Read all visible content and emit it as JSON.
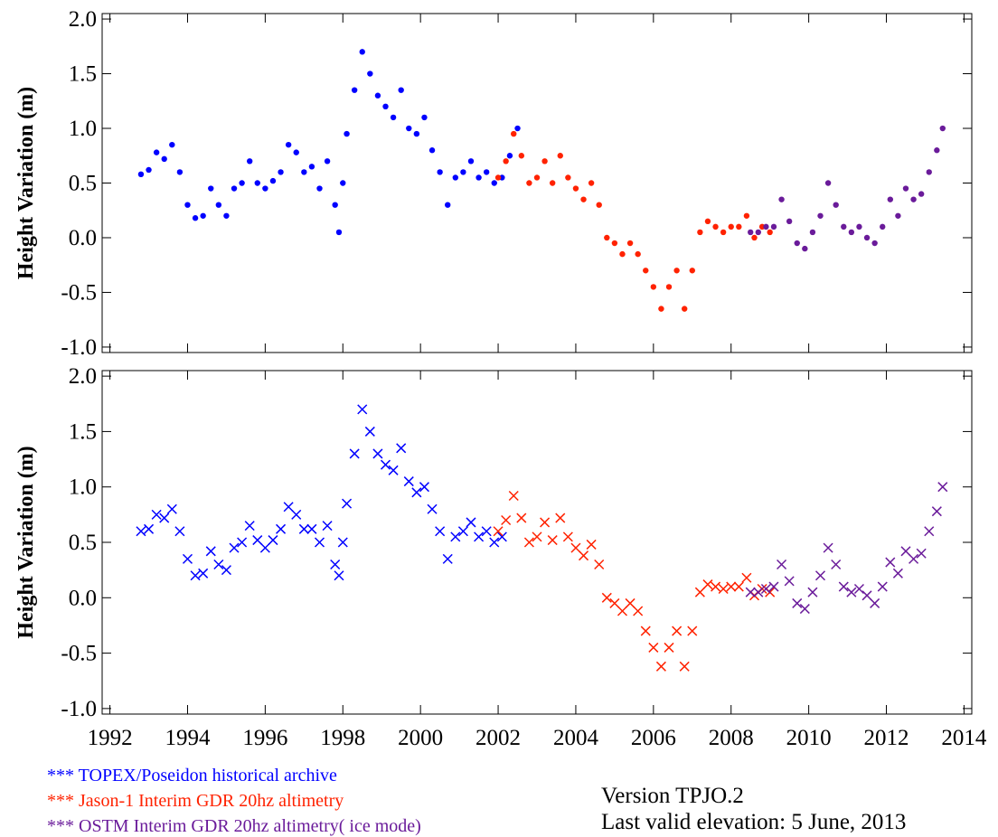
{
  "chart_data": [
    {
      "type": "scatter",
      "marker": "dot",
      "y_label": "Height Variation (m)",
      "xlim": [
        1991.8,
        2014.2
      ],
      "ylim": [
        -1.05,
        2.05
      ],
      "yticks": [
        {
          "value": 2,
          "label": "2.0"
        },
        1.5,
        {
          "value": 1,
          "label": "1.0"
        },
        0.5,
        {
          "value": 0,
          "label": "0.0"
        },
        -0.5,
        {
          "value": -1,
          "label": "-1.0"
        }
      ],
      "series": [
        {
          "color": "#0000ff",
          "x": [
            1992.8,
            1993.0,
            1993.2,
            1993.4,
            1993.6,
            1993.8,
            1994.0,
            1994.2,
            1994.4,
            1994.6,
            1994.8,
            1995.0,
            1995.2,
            1995.4,
            1995.6,
            1995.8,
            1996.0,
            1996.2,
            1996.4,
            1996.6,
            1996.8,
            1997.0,
            1997.2,
            1997.4,
            1997.6,
            1997.8,
            1997.9,
            1998.0,
            1998.1,
            1998.3,
            1998.5,
            1998.7,
            1998.9,
            1999.1,
            1999.3,
            1999.5,
            1999.7,
            1999.9,
            2000.1,
            2000.3,
            2000.5,
            2000.7,
            2000.9,
            2001.1,
            2001.3,
            2001.5,
            2001.7,
            2001.9,
            2002.1,
            2002.3,
            2002.5
          ],
          "values": [
            0.58,
            0.62,
            0.78,
            0.72,
            0.85,
            0.6,
            0.3,
            0.18,
            0.2,
            0.45,
            0.3,
            0.2,
            0.45,
            0.5,
            0.7,
            0.5,
            0.45,
            0.52,
            0.6,
            0.85,
            0.78,
            0.6,
            0.65,
            0.45,
            0.7,
            0.3,
            0.05,
            0.5,
            0.95,
            1.35,
            1.7,
            1.5,
            1.3,
            1.2,
            1.1,
            1.35,
            1.0,
            0.95,
            1.1,
            0.8,
            0.6,
            0.3,
            0.55,
            0.6,
            0.7,
            0.55,
            0.6,
            0.5,
            0.55,
            0.75,
            1.0
          ]
        },
        {
          "color": "#ff2200",
          "x": [
            2002.0,
            2002.2,
            2002.4,
            2002.6,
            2002.8,
            2003.0,
            2003.2,
            2003.4,
            2003.6,
            2003.8,
            2004.0,
            2004.2,
            2004.4,
            2004.6,
            2004.8,
            2005.0,
            2005.2,
            2005.4,
            2005.6,
            2005.8,
            2006.0,
            2006.2,
            2006.4,
            2006.6,
            2006.8,
            2007.0,
            2007.2,
            2007.4,
            2007.6,
            2007.8,
            2008.0,
            2008.2,
            2008.4,
            2008.6,
            2008.8,
            2009.0
          ],
          "values": [
            0.55,
            0.7,
            0.95,
            0.75,
            0.5,
            0.55,
            0.7,
            0.5,
            0.75,
            0.55,
            0.45,
            0.35,
            0.5,
            0.3,
            0.0,
            -0.05,
            -0.15,
            -0.05,
            -0.15,
            -0.3,
            -0.45,
            -0.65,
            -0.45,
            -0.3,
            -0.65,
            -0.3,
            0.05,
            0.15,
            0.1,
            0.05,
            0.1,
            0.1,
            0.2,
            0.0,
            0.1,
            0.05
          ]
        },
        {
          "color": "#6a1b9a",
          "x": [
            2008.5,
            2008.7,
            2008.9,
            2009.1,
            2009.3,
            2009.5,
            2009.7,
            2009.9,
            2010.1,
            2010.3,
            2010.5,
            2010.7,
            2010.9,
            2011.1,
            2011.3,
            2011.5,
            2011.7,
            2011.9,
            2012.1,
            2012.3,
            2012.5,
            2012.7,
            2012.9,
            2013.1,
            2013.3,
            2013.45
          ],
          "values": [
            0.05,
            0.05,
            0.1,
            0.1,
            0.35,
            0.15,
            -0.05,
            -0.1,
            0.05,
            0.2,
            0.5,
            0.3,
            0.1,
            0.05,
            0.1,
            0.0,
            -0.05,
            0.1,
            0.35,
            0.2,
            0.45,
            0.35,
            0.4,
            0.6,
            0.8,
            1.0
          ]
        }
      ]
    },
    {
      "type": "scatter",
      "marker": "x",
      "y_label": "Height Variation (m)",
      "xlim": [
        1991.8,
        2014.2
      ],
      "ylim": [
        -1.05,
        2.05
      ],
      "xticks": [
        1992,
        1994,
        1996,
        1998,
        2000,
        2002,
        2004,
        2006,
        2008,
        2010,
        2012,
        2014
      ],
      "yticks": [
        {
          "value": 2,
          "label": "2.0"
        },
        1.5,
        {
          "value": 1,
          "label": "1.0"
        },
        0.5,
        {
          "value": 0,
          "label": "0.0"
        },
        -0.5,
        {
          "value": -1,
          "label": "-1.0"
        }
      ],
      "series": [
        {
          "name": "*** TOPEX/Poseidon historical archive",
          "color": "#0000ff",
          "x": [
            1992.8,
            1993.0,
            1993.2,
            1993.4,
            1993.6,
            1993.8,
            1994.0,
            1994.2,
            1994.4,
            1994.6,
            1994.8,
            1995.0,
            1995.2,
            1995.4,
            1995.6,
            1995.8,
            1996.0,
            1996.2,
            1996.4,
            1996.6,
            1996.8,
            1997.0,
            1997.2,
            1997.4,
            1997.6,
            1997.8,
            1997.9,
            1998.0,
            1998.1,
            1998.3,
            1998.5,
            1998.7,
            1998.9,
            1999.1,
            1999.3,
            1999.5,
            1999.7,
            1999.9,
            2000.1,
            2000.3,
            2000.5,
            2000.7,
            2000.9,
            2001.1,
            2001.3,
            2001.5,
            2001.7,
            2001.9,
            2002.1
          ],
          "values": [
            0.6,
            0.62,
            0.75,
            0.72,
            0.8,
            0.6,
            0.35,
            0.2,
            0.22,
            0.42,
            0.3,
            0.25,
            0.45,
            0.5,
            0.65,
            0.52,
            0.45,
            0.52,
            0.62,
            0.82,
            0.75,
            0.62,
            0.62,
            0.5,
            0.65,
            0.3,
            0.2,
            0.5,
            0.85,
            1.3,
            1.7,
            1.5,
            1.3,
            1.2,
            1.15,
            1.35,
            1.05,
            0.95,
            1.0,
            0.8,
            0.6,
            0.35,
            0.55,
            0.6,
            0.68,
            0.55,
            0.6,
            0.5,
            0.55
          ]
        },
        {
          "name": "*** Jason-1 Interim GDR 20hz altimetry",
          "color": "#ff2200",
          "x": [
            2002.0,
            2002.2,
            2002.4,
            2002.6,
            2002.8,
            2003.0,
            2003.2,
            2003.4,
            2003.6,
            2003.8,
            2004.0,
            2004.2,
            2004.4,
            2004.6,
            2004.8,
            2005.0,
            2005.2,
            2005.4,
            2005.6,
            2005.8,
            2006.0,
            2006.2,
            2006.4,
            2006.6,
            2006.8,
            2007.0,
            2007.2,
            2007.4,
            2007.6,
            2007.8,
            2008.0,
            2008.2,
            2008.4,
            2008.6,
            2008.8,
            2009.0
          ],
          "values": [
            0.6,
            0.7,
            0.92,
            0.72,
            0.5,
            0.55,
            0.68,
            0.52,
            0.72,
            0.55,
            0.45,
            0.38,
            0.48,
            0.3,
            0.0,
            -0.05,
            -0.12,
            -0.05,
            -0.12,
            -0.3,
            -0.45,
            -0.62,
            -0.45,
            -0.3,
            -0.62,
            -0.3,
            0.05,
            0.12,
            0.1,
            0.08,
            0.1,
            0.1,
            0.18,
            0.02,
            0.08,
            0.05
          ]
        },
        {
          "name": "*** OSTM  Interim GDR 20hz altimetry( ice mode)",
          "color": "#6a1b9a",
          "x": [
            2008.5,
            2008.7,
            2008.9,
            2009.1,
            2009.3,
            2009.5,
            2009.7,
            2009.9,
            2010.1,
            2010.3,
            2010.5,
            2010.7,
            2010.9,
            2011.1,
            2011.3,
            2011.5,
            2011.7,
            2011.9,
            2012.1,
            2012.3,
            2012.5,
            2012.7,
            2012.9,
            2013.1,
            2013.3,
            2013.45
          ],
          "values": [
            0.05,
            0.05,
            0.08,
            0.1,
            0.3,
            0.15,
            -0.05,
            -0.1,
            0.05,
            0.2,
            0.45,
            0.3,
            0.1,
            0.05,
            0.08,
            0.02,
            -0.05,
            0.1,
            0.32,
            0.22,
            0.42,
            0.35,
            0.4,
            0.6,
            0.78,
            1.0
          ]
        }
      ],
      "annotations": [
        "Version TPJO.2",
        "Last valid elevation:  5 June, 2013"
      ]
    }
  ]
}
